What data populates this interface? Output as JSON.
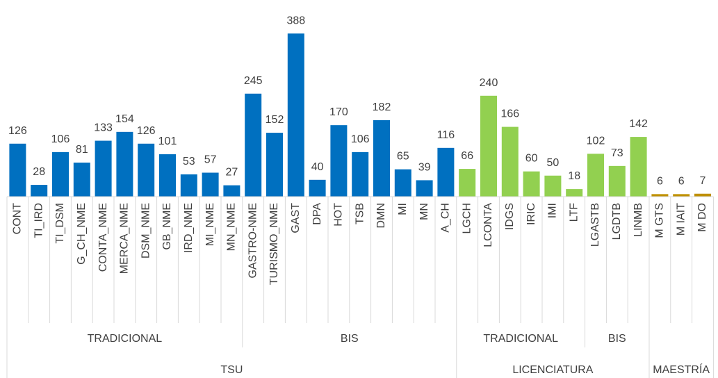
{
  "chart_data": {
    "type": "bar",
    "ylim": [
      0,
      400
    ],
    "groups": [
      {
        "name": "TSU",
        "subgroups": [
          {
            "name": "TRADICIONAL",
            "color": "#0070c0",
            "categories": [
              "CONT",
              "TI_IRD",
              "TI_DSM",
              "G_CH_NME",
              "CONTA_NME",
              "MERCA_NME",
              "DSM_NME",
              "GB_NME",
              "IRD_NME",
              "MI_NME",
              "MN_NME"
            ],
            "values": [
              126,
              28,
              106,
              81,
              133,
              154,
              126,
              101,
              53,
              57,
              27
            ]
          },
          {
            "name": "BIS",
            "color": "#0070c0",
            "categories": [
              "GASTRO-NME",
              "TURISMO_NME",
              "GAST",
              "DPA",
              "HOT",
              "TSB",
              "DMN",
              "MI",
              "MN",
              "A_CH"
            ],
            "values": [
              245,
              152,
              388,
              40,
              170,
              106,
              182,
              65,
              39,
              116
            ]
          }
        ]
      },
      {
        "name": "LICENCIATURA",
        "subgroups": [
          {
            "name": "TRADICIONAL",
            "color": "#92d050",
            "categories": [
              "LGCH",
              "LCONTA",
              "IDGS",
              "IRIC",
              "IMI",
              "LTF"
            ],
            "values": [
              66,
              240,
              166,
              60,
              50,
              18
            ]
          },
          {
            "name": "BIS",
            "color": "#92d050",
            "categories": [
              "LGASTB",
              "LGDTB",
              "LINMB"
            ],
            "values": [
              102,
              73,
              142
            ]
          }
        ]
      },
      {
        "name": "MAESTRÍA",
        "subgroups": [
          {
            "color": "#bf9000",
            "categories": [
              "M GTS",
              "M IAIT",
              "M DO"
            ],
            "values": [
              6,
              6,
              7
            ]
          }
        ]
      }
    ]
  }
}
